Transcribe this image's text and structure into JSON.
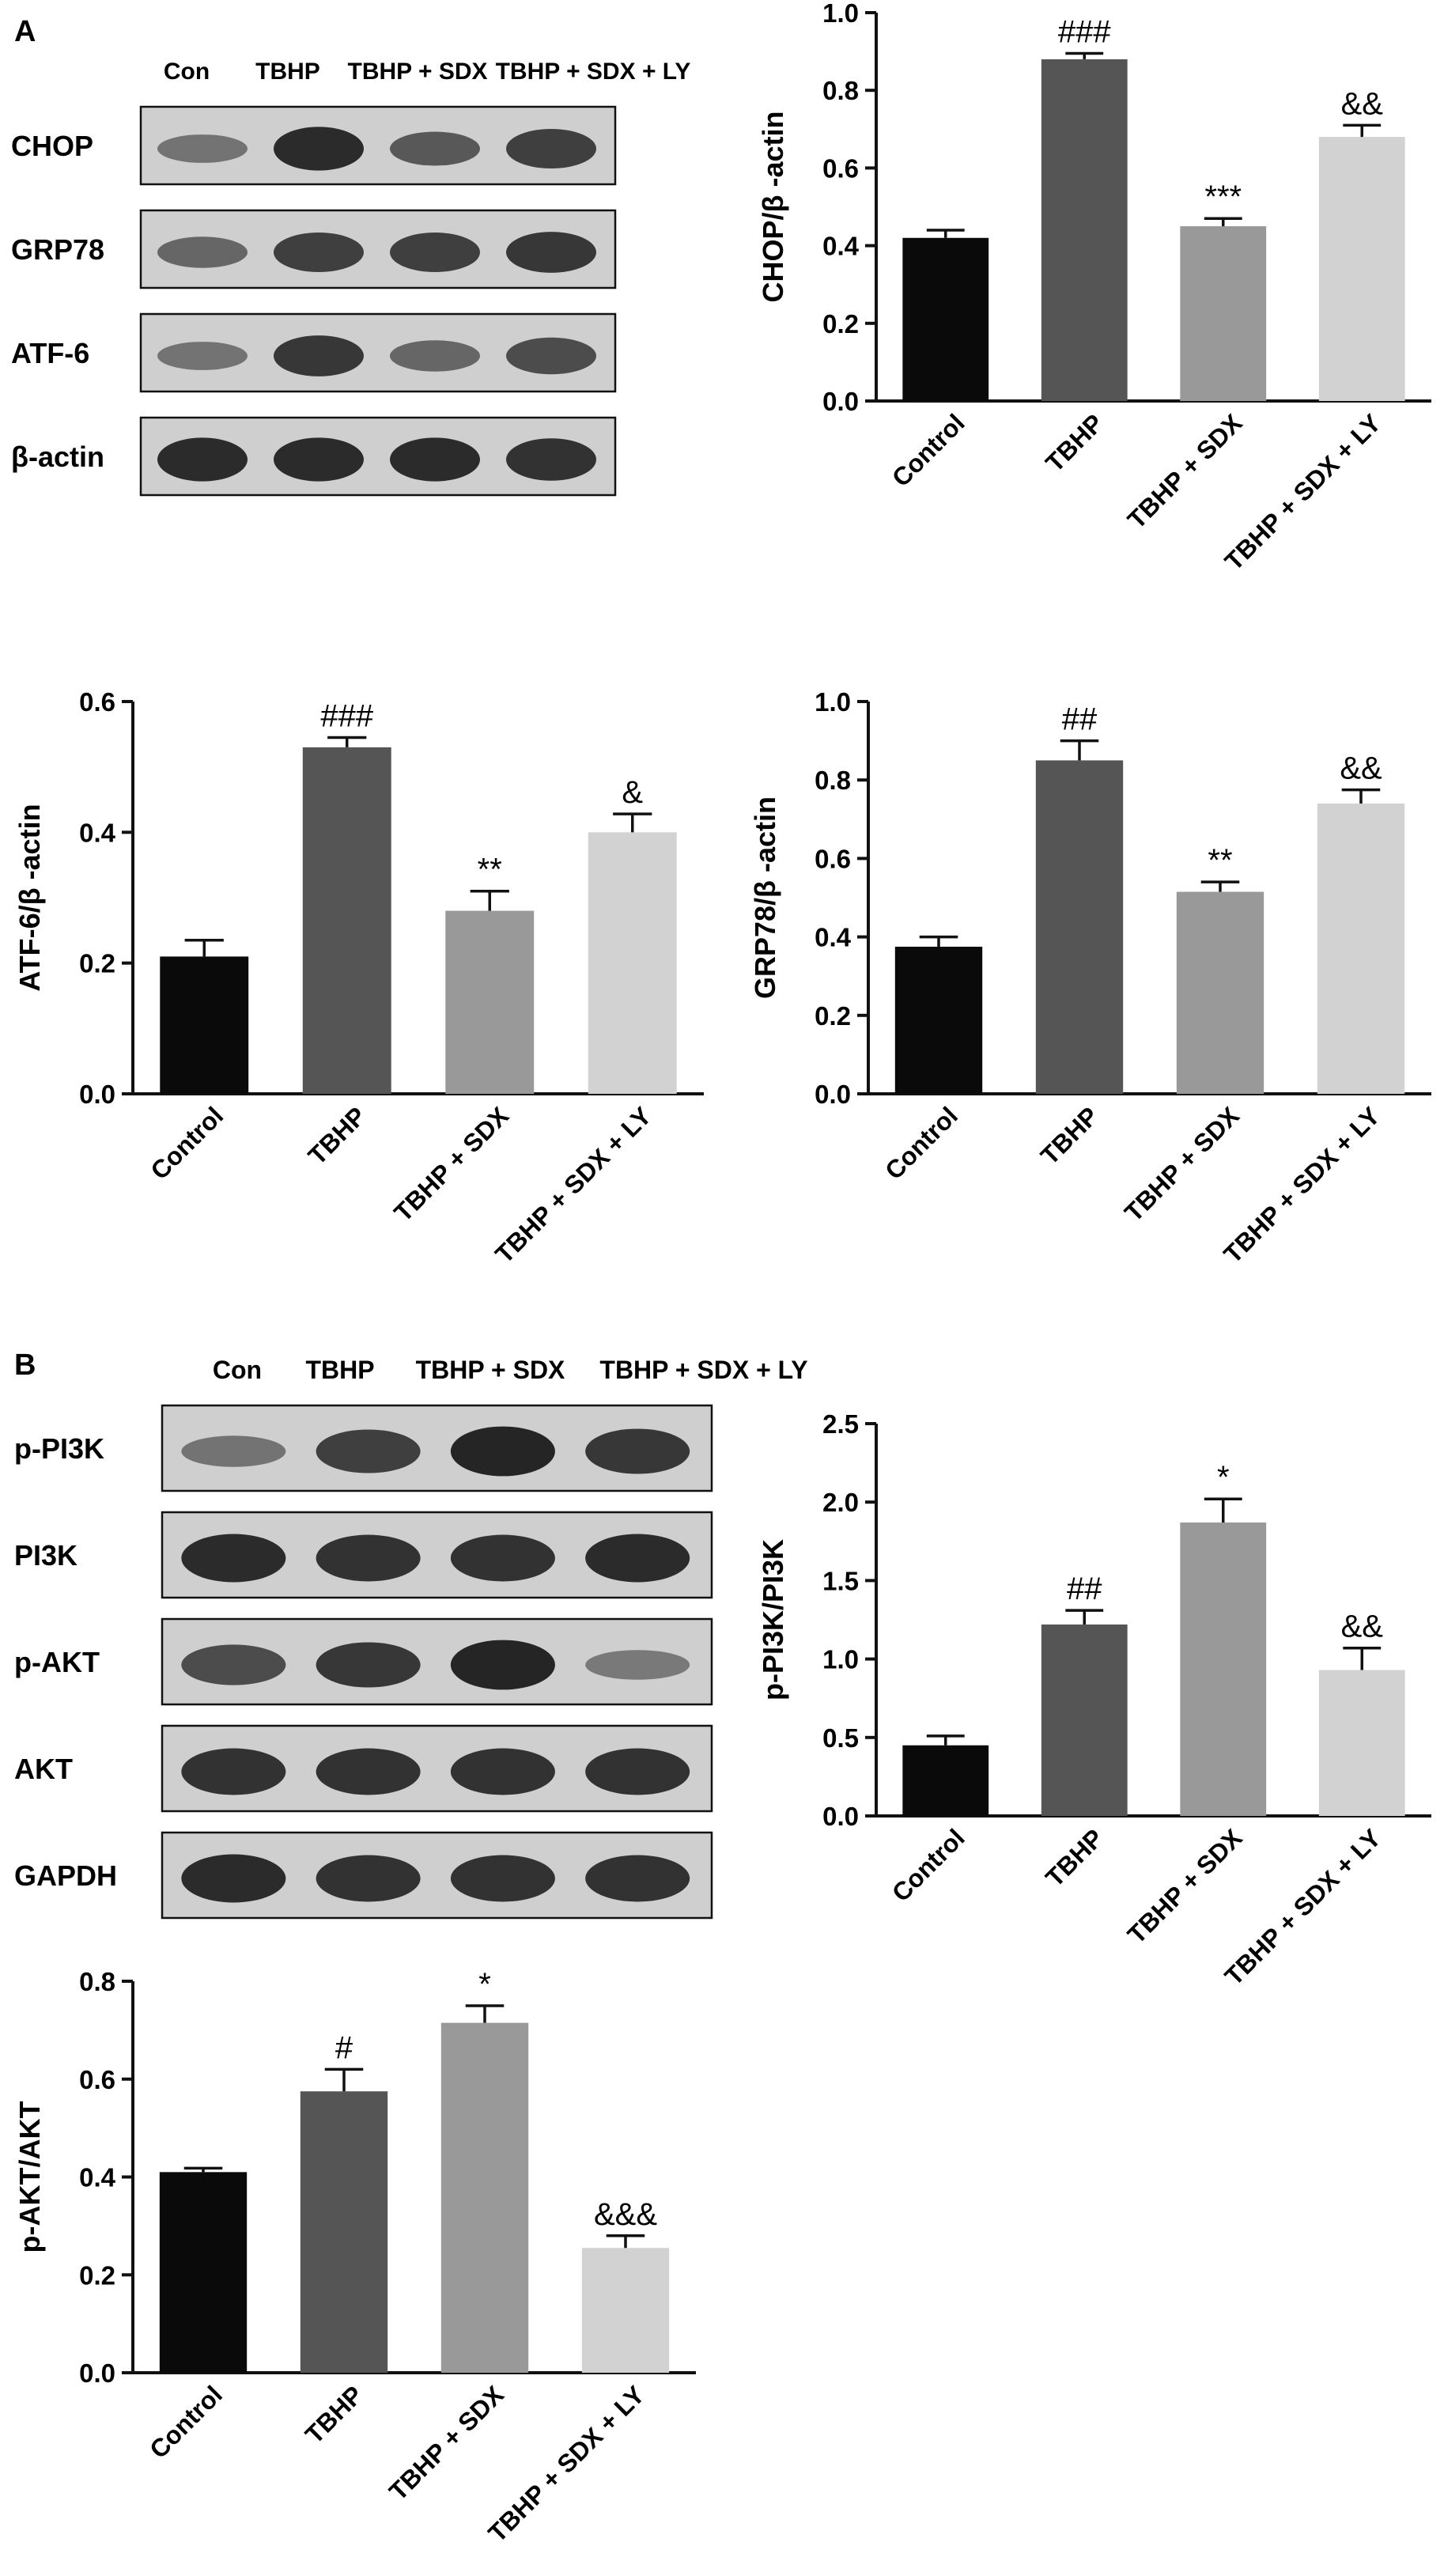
{
  "panels": {
    "a": "A",
    "b": "B"
  },
  "colors": {
    "axis": "#111111",
    "blot_bg": "#cfcfcf",
    "band": "#141414",
    "bar_fills": [
      "#0a0a0a",
      "#555555",
      "#999999",
      "#d2d2d2"
    ],
    "error_bar": "#111111"
  },
  "blots": [
    {
      "lanes": [
        "Con",
        "TBHP",
        "TBHP + SDX",
        "TBHP + SDX + LY"
      ],
      "rows": [
        {
          "label": "CHOP",
          "band_intensity": [
            0.35,
            0.9,
            0.55,
            0.75
          ]
        },
        {
          "label": "GRP78",
          "band_intensity": [
            0.45,
            0.75,
            0.75,
            0.8
          ]
        },
        {
          "label": "ATF-6",
          "band_intensity": [
            0.35,
            0.8,
            0.45,
            0.65
          ]
        },
        {
          "label": "β-actin",
          "band_intensity": [
            0.9,
            0.9,
            0.9,
            0.85
          ]
        }
      ]
    },
    {
      "lanes": [
        "Con",
        "TBHP",
        "TBHP + SDX",
        "TBHP + SDX + LY"
      ],
      "rows": [
        {
          "label": "p-PI3K",
          "band_intensity": [
            0.35,
            0.75,
            0.95,
            0.8
          ]
        },
        {
          "label": "PI3K",
          "band_intensity": [
            0.9,
            0.85,
            0.85,
            0.9
          ]
        },
        {
          "label": "p-AKT",
          "band_intensity": [
            0.65,
            0.8,
            0.95,
            0.3
          ]
        },
        {
          "label": "AKT",
          "band_intensity": [
            0.85,
            0.85,
            0.85,
            0.85
          ]
        },
        {
          "label": "GAPDH",
          "band_intensity": [
            0.9,
            0.85,
            0.85,
            0.85
          ]
        }
      ]
    }
  ],
  "chart_data": [
    {
      "type": "bar",
      "categories": [
        "Control",
        "TBHP",
        "TBHP + SDX",
        "TBHP + SDX + LY"
      ],
      "values": [
        0.42,
        0.88,
        0.45,
        0.68
      ],
      "errors": [
        0.02,
        0.015,
        0.02,
        0.03
      ],
      "annotations": [
        "",
        "###",
        "***",
        "&&"
      ],
      "ylabel": "CHOP/β -actin",
      "ylim": [
        0,
        1.0
      ],
      "yticks": [
        "0.0",
        "0.2",
        "0.4",
        "0.6",
        "0.8",
        "1.0"
      ]
    },
    {
      "type": "bar",
      "categories": [
        "Control",
        "TBHP",
        "TBHP + SDX",
        "TBHP + SDX + LY"
      ],
      "values": [
        0.21,
        0.53,
        0.28,
        0.4
      ],
      "errors": [
        0.025,
        0.015,
        0.03,
        0.028
      ],
      "annotations": [
        "",
        "###",
        "**",
        "&"
      ],
      "ylabel": "ATF-6/β -actin",
      "ylim": [
        0,
        0.6
      ],
      "yticks": [
        "0.0",
        "0.2",
        "0.4",
        "0.6"
      ]
    },
    {
      "type": "bar",
      "categories": [
        "Control",
        "TBHP",
        "TBHP + SDX",
        "TBHP + SDX + LY"
      ],
      "values": [
        0.375,
        0.85,
        0.515,
        0.74
      ],
      "errors": [
        0.025,
        0.05,
        0.025,
        0.035
      ],
      "annotations": [
        "",
        "##",
        "**",
        "&&"
      ],
      "ylabel": "GRP78/β -actin",
      "ylim": [
        0,
        1.0
      ],
      "yticks": [
        "0.0",
        "0.2",
        "0.4",
        "0.6",
        "0.8",
        "1.0"
      ]
    },
    {
      "type": "bar",
      "categories": [
        "Control",
        "TBHP",
        "TBHP + SDX",
        "TBHP + SDX + LY"
      ],
      "values": [
        0.45,
        1.22,
        1.87,
        0.93
      ],
      "errors": [
        0.06,
        0.09,
        0.15,
        0.14
      ],
      "annotations": [
        "",
        "##",
        "*",
        "&&"
      ],
      "ylabel": "p-PI3K/PI3K",
      "ylim": [
        0,
        2.5
      ],
      "yticks": [
        "0.0",
        "0.5",
        "1.0",
        "1.5",
        "2.0",
        "2.5"
      ]
    },
    {
      "type": "bar",
      "categories": [
        "Control",
        "TBHP",
        "TBHP + SDX",
        "TBHP + SDX + LY"
      ],
      "values": [
        0.41,
        0.575,
        0.715,
        0.255
      ],
      "errors": [
        0.008,
        0.045,
        0.035,
        0.025
      ],
      "annotations": [
        "",
        "#",
        "*",
        "&&&"
      ],
      "ylabel": "p-AKT/AKT",
      "ylim": [
        0,
        0.8
      ],
      "yticks": [
        "0.0",
        "0.2",
        "0.4",
        "0.6",
        "0.8"
      ]
    }
  ]
}
